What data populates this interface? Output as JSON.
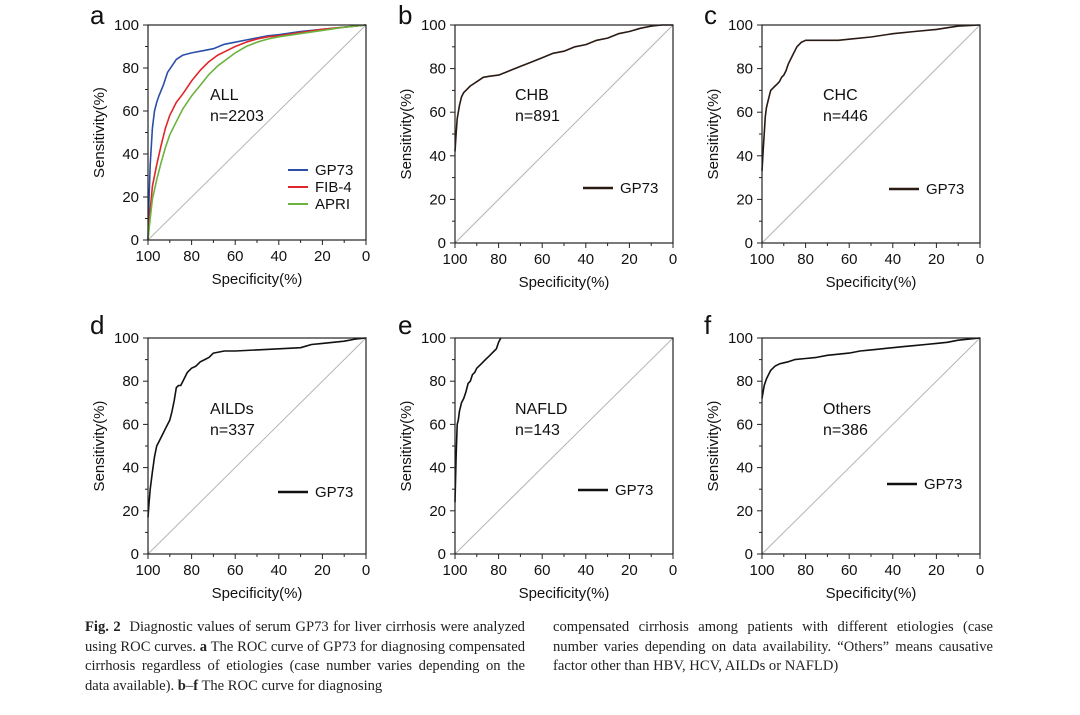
{
  "chart_data": [
    {
      "id": "a",
      "type": "line",
      "panel_label": "a",
      "title": "",
      "xlabel": "Specificity(%)",
      "ylabel": "Sensitivity(%)",
      "xlim": [
        100,
        0
      ],
      "ylim": [
        0,
        100
      ],
      "x_ticks": [
        "100",
        "80",
        "60",
        "40",
        "20",
        "0"
      ],
      "y_ticks": [
        "0",
        "20",
        "40",
        "60",
        "80",
        "100"
      ],
      "annotation": [
        "ALL",
        "n=2203"
      ],
      "legend_position": "lower-right",
      "diagonal": true,
      "series": [
        {
          "name": "GP73",
          "color": "#2b4fa8",
          "x": [
            100,
            99.5,
            99,
            98,
            97,
            96,
            95,
            93,
            91,
            89,
            87,
            84,
            80,
            75,
            70,
            65,
            60,
            55,
            50,
            45,
            40,
            30,
            20,
            10,
            0
          ],
          "y": [
            0,
            20,
            35,
            52,
            60,
            64,
            67,
            72,
            78,
            81,
            84,
            86,
            87,
            88,
            89,
            91,
            92,
            93,
            94,
            95,
            95.5,
            97,
            98,
            99,
            100
          ]
        },
        {
          "name": "FIB-4",
          "color": "#e0262a",
          "x": [
            100,
            99,
            98,
            96,
            94,
            92,
            90,
            87,
            84,
            80,
            76,
            72,
            68,
            64,
            60,
            55,
            50,
            45,
            40,
            30,
            20,
            10,
            0
          ],
          "y": [
            0,
            14,
            25,
            35,
            44,
            52,
            58,
            64,
            68,
            74,
            79,
            83,
            86,
            88,
            90,
            92,
            93.5,
            94.5,
            95,
            96.5,
            98,
            99,
            100
          ]
        },
        {
          "name": "APRI",
          "color": "#6cb33f",
          "x": [
            100,
            99,
            98,
            96,
            94,
            92,
            90,
            87,
            84,
            80,
            76,
            72,
            68,
            64,
            60,
            55,
            50,
            45,
            40,
            30,
            20,
            10,
            0
          ],
          "y": [
            0,
            10,
            19,
            28,
            36,
            43,
            49,
            55,
            61,
            67,
            72,
            77,
            81,
            84,
            87,
            90,
            92,
            93.5,
            94.5,
            96,
            97.5,
            99,
            100
          ]
        }
      ]
    },
    {
      "id": "b",
      "type": "line",
      "panel_label": "b",
      "title": "",
      "xlabel": "Specificity(%)",
      "ylabel": "Sensitivity(%)",
      "xlim": [
        100,
        0
      ],
      "ylim": [
        0,
        100
      ],
      "x_ticks": [
        "100",
        "80",
        "60",
        "40",
        "20",
        "0"
      ],
      "y_ticks": [
        "0",
        "20",
        "40",
        "60",
        "80",
        "100"
      ],
      "annotation": [
        "CHB",
        "n=891"
      ],
      "legend_position": "lower-right",
      "diagonal": true,
      "series": [
        {
          "name": "GP73",
          "color": "#2a1a14",
          "x": [
            100,
            99.5,
            99,
            98,
            97,
            96,
            95,
            93,
            90,
            87,
            84,
            80,
            75,
            70,
            65,
            60,
            55,
            50,
            45,
            40,
            35,
            30,
            25,
            20,
            15,
            10,
            5,
            0
          ],
          "y": [
            42,
            50,
            57,
            63,
            67,
            69,
            70,
            72,
            74,
            76,
            76.5,
            77,
            79,
            81,
            83,
            85,
            87,
            88,
            90,
            91,
            93,
            94,
            96,
            97,
            98.5,
            99.5,
            100,
            100
          ]
        }
      ]
    },
    {
      "id": "c",
      "type": "line",
      "panel_label": "c",
      "title": "",
      "xlabel": "Specificity(%)",
      "ylabel": "Sensitivity(%)",
      "xlim": [
        100,
        0
      ],
      "ylim": [
        0,
        100
      ],
      "x_ticks": [
        "100",
        "80",
        "60",
        "40",
        "20",
        "0"
      ],
      "y_ticks": [
        "0",
        "20",
        "40",
        "60",
        "80",
        "100"
      ],
      "annotation": [
        "CHC",
        "n=446"
      ],
      "legend_position": "lower-right",
      "diagonal": true,
      "series": [
        {
          "name": "GP73",
          "color": "#2a1a14",
          "x": [
            100,
            99.5,
            99,
            98.5,
            98,
            97,
            96,
            95,
            94,
            93,
            92,
            91,
            90,
            89,
            88,
            86,
            84,
            82,
            80,
            75,
            70,
            65,
            60,
            50,
            40,
            30,
            20,
            10,
            0
          ],
          "y": [
            33,
            42,
            50,
            58,
            62,
            66,
            70,
            71,
            72,
            73,
            74,
            76,
            77,
            79,
            82,
            86,
            90,
            92,
            93,
            93,
            93,
            93,
            93.5,
            94.5,
            96,
            97,
            98,
            99.5,
            100
          ]
        }
      ]
    },
    {
      "id": "d",
      "type": "line",
      "panel_label": "d",
      "title": "",
      "xlabel": "Specificity(%)",
      "ylabel": "Sensitivity(%)",
      "xlim": [
        100,
        0
      ],
      "ylim": [
        0,
        100
      ],
      "x_ticks": [
        "100",
        "80",
        "60",
        "40",
        "20",
        "0"
      ],
      "y_ticks": [
        "0",
        "20",
        "40",
        "60",
        "80",
        "100"
      ],
      "annotation": [
        "AILDs",
        "n=337"
      ],
      "legend_position": "lower-right",
      "diagonal": true,
      "series": [
        {
          "name": "GP73",
          "color": "#111111",
          "x": [
            100,
            99.5,
            99,
            98.5,
            98,
            97,
            96,
            95,
            94,
            93,
            92,
            91,
            90,
            89,
            88,
            87,
            86,
            85,
            84,
            82,
            80,
            78,
            76,
            74,
            72,
            70,
            65,
            60,
            50,
            40,
            30,
            25,
            20,
            10,
            5,
            0
          ],
          "y": [
            17,
            24,
            30,
            34,
            38,
            45,
            50,
            52,
            54,
            56,
            58,
            60,
            62,
            66,
            71,
            77,
            78,
            78,
            80,
            84,
            86,
            87,
            89,
            90,
            91,
            93,
            94,
            94,
            94.5,
            95,
            95.5,
            97,
            97.5,
            98.5,
            99.5,
            100
          ]
        }
      ]
    },
    {
      "id": "e",
      "type": "line",
      "panel_label": "e",
      "title": "",
      "xlabel": "Specificity(%)",
      "ylabel": "Sensitivity(%)",
      "xlim": [
        100,
        0
      ],
      "ylim": [
        0,
        100
      ],
      "x_ticks": [
        "100",
        "80",
        "60",
        "40",
        "20",
        "0"
      ],
      "y_ticks": [
        "0",
        "20",
        "40",
        "60",
        "80",
        "100"
      ],
      "annotation": [
        "NAFLD",
        "n=143"
      ],
      "legend_position": "lower-right",
      "diagonal": true,
      "series": [
        {
          "name": "GP73",
          "color": "#111111",
          "x": [
            100,
            99.5,
            99,
            98.5,
            98,
            97,
            96,
            95,
            94,
            93,
            92,
            91,
            90,
            89,
            88,
            87,
            86,
            85,
            84,
            83,
            82,
            81,
            80,
            79
          ],
          "y": [
            24,
            45,
            60,
            62,
            66,
            70,
            72,
            75,
            79,
            80,
            83,
            84,
            86,
            87,
            88,
            89,
            90,
            91,
            92,
            93,
            94,
            95,
            98,
            100
          ]
        }
      ]
    },
    {
      "id": "f",
      "type": "line",
      "panel_label": "f",
      "title": "",
      "xlabel": "Specificity(%)",
      "ylabel": "Sensitivity(%)",
      "xlim": [
        100,
        0
      ],
      "ylim": [
        0,
        100
      ],
      "x_ticks": [
        "100",
        "80",
        "60",
        "40",
        "20",
        "0"
      ],
      "y_ticks": [
        "0",
        "20",
        "40",
        "60",
        "80",
        "100"
      ],
      "annotation": [
        "Others",
        "n=386"
      ],
      "legend_position": "lower-right",
      "diagonal": true,
      "series": [
        {
          "name": "GP73",
          "color": "#111111",
          "x": [
            100,
            99.5,
            99,
            98,
            97,
            96,
            95,
            94,
            92,
            90,
            88,
            85,
            80,
            75,
            70,
            65,
            60,
            55,
            50,
            45,
            40,
            35,
            30,
            25,
            20,
            15,
            10,
            5,
            0
          ],
          "y": [
            72,
            75,
            78,
            81,
            83,
            85,
            86,
            87,
            88,
            88.5,
            89,
            90,
            90.5,
            91,
            92,
            92.5,
            93,
            94,
            94.5,
            95,
            95.5,
            96,
            96.5,
            97,
            97.5,
            98,
            99,
            99.5,
            100
          ]
        }
      ]
    }
  ],
  "caption": {
    "fig_label": "Fig. 2",
    "left_parts": [
      "Diagnostic values of serum GP73 for liver cirrhosis were analyzed using ROC curves. ",
      "a",
      " The ROC curve of GP73 for diagnosing compensated cirrhosis regardless of etiologies (case number varies depending on the data available). ",
      "b",
      "–",
      "f",
      " The ROC curve for diagnosing"
    ],
    "right": "compensated cirrhosis among patients with different etiologies (case number varies depending on data availability. “Others” means causative factor other than HBV, HCV, AILDs or NAFLD)"
  }
}
